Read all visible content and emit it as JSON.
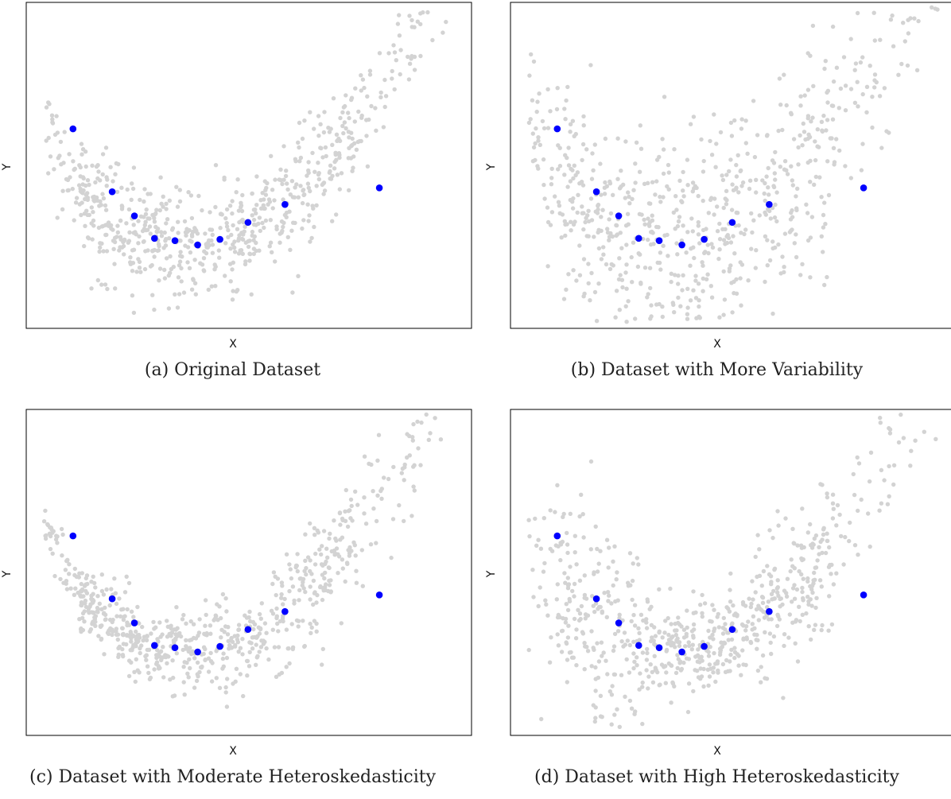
{
  "chart_data": [
    {
      "id": "a",
      "type": "scatter",
      "caption": "(a) Original Dataset",
      "xlabel": "X",
      "ylabel": "Y",
      "xlim": [
        0,
        1
      ],
      "ylim": [
        0,
        1
      ],
      "grid": false,
      "background_points": {
        "color": "#d3d3d3",
        "count": 720,
        "shape": "u",
        "spread": "constant",
        "noise": 0.085
      },
      "highlight_color": "#0000ff",
      "series": [
        {
          "x": [
            0.105,
            0.193,
            0.243,
            0.288,
            0.334,
            0.385,
            0.435,
            0.498,
            0.581,
            0.793
          ],
          "y": [
            0.612,
            0.419,
            0.345,
            0.276,
            0.269,
            0.256,
            0.273,
            0.325,
            0.38,
            0.431
          ]
        }
      ]
    },
    {
      "id": "b",
      "type": "scatter",
      "caption": "(b) Dataset with More Variability",
      "xlabel": "X",
      "ylabel": "Y",
      "xlim": [
        0,
        1
      ],
      "ylim": [
        0,
        1
      ],
      "grid": false,
      "background_points": {
        "color": "#d3d3d3",
        "count": 720,
        "shape": "u",
        "spread": "wide",
        "noise": 0.17
      },
      "highlight_color": "#0000ff",
      "series": [
        {
          "x": [
            0.105,
            0.193,
            0.243,
            0.288,
            0.334,
            0.385,
            0.435,
            0.498,
            0.581,
            0.793
          ],
          "y": [
            0.612,
            0.419,
            0.345,
            0.276,
            0.269,
            0.256,
            0.273,
            0.325,
            0.38,
            0.431
          ]
        }
      ]
    },
    {
      "id": "c",
      "type": "scatter",
      "caption": "(c) Dataset with Moderate Heteroskedasticity",
      "xlabel": "X",
      "ylabel": "Y",
      "xlim": [
        0,
        1
      ],
      "ylim": [
        0,
        1
      ],
      "grid": false,
      "background_points": {
        "color": "#d3d3d3",
        "count": 720,
        "shape": "u",
        "spread": "increasing",
        "noise": 0.07
      },
      "highlight_color": "#0000ff",
      "series": [
        {
          "x": [
            0.105,
            0.193,
            0.243,
            0.288,
            0.334,
            0.385,
            0.435,
            0.498,
            0.581,
            0.793
          ],
          "y": [
            0.612,
            0.419,
            0.345,
            0.276,
            0.269,
            0.256,
            0.273,
            0.325,
            0.38,
            0.431
          ]
        }
      ]
    },
    {
      "id": "d",
      "type": "scatter",
      "caption": "(d) Dataset with High Heteroskedasticity",
      "xlabel": "X",
      "ylabel": "Y",
      "xlim": [
        0,
        1
      ],
      "ylim": [
        0,
        1
      ],
      "grid": false,
      "background_points": {
        "color": "#d3d3d3",
        "count": 720,
        "shape": "u",
        "spread": "high",
        "noise": 0.13
      },
      "highlight_color": "#0000ff",
      "series": [
        {
          "x": [
            0.105,
            0.193,
            0.243,
            0.288,
            0.334,
            0.385,
            0.435,
            0.498,
            0.581,
            0.793
          ],
          "y": [
            0.612,
            0.419,
            0.345,
            0.276,
            0.269,
            0.256,
            0.273,
            0.325,
            0.38,
            0.431
          ]
        }
      ]
    }
  ]
}
